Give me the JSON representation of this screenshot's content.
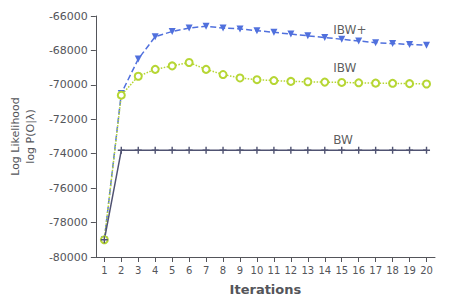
{
  "chart_data": {
    "type": "line",
    "xlabel": "Iterations",
    "ylabel": "Log Likelihood\nlog P(O|λ)",
    "x": [
      1,
      2,
      3,
      4,
      5,
      6,
      7,
      8,
      9,
      10,
      11,
      12,
      13,
      14,
      15,
      16,
      17,
      18,
      19,
      20
    ],
    "series": [
      {
        "name": "IBW+",
        "line_style": "dashed",
        "marker": "triangle_down",
        "values": [
          -79000,
          -70500,
          -68500,
          -67200,
          -66900,
          -66700,
          -66600,
          -66700,
          -66750,
          -66850,
          -66950,
          -67050,
          -67150,
          -67250,
          -67350,
          -67450,
          -67550,
          -67600,
          -67650,
          -67700
        ]
      },
      {
        "name": "IBW",
        "line_style": "dotted",
        "marker": "circle_open",
        "values": [
          -79000,
          -70600,
          -69500,
          -69100,
          -68900,
          -68700,
          -69100,
          -69400,
          -69600,
          -69700,
          -69750,
          -69800,
          -69820,
          -69840,
          -69860,
          -69880,
          -69900,
          -69910,
          -69930,
          -69950
        ]
      },
      {
        "name": "BW",
        "line_style": "solid",
        "marker": "plus",
        "values": [
          -79000,
          -73800,
          -73800,
          -73800,
          -73800,
          -73800,
          -73800,
          -73800,
          -73800,
          -73800,
          -73800,
          -73800,
          -73800,
          -73800,
          -73800,
          -73800,
          -73800,
          -73800,
          -73800,
          -73800
        ]
      }
    ],
    "xlim": [
      0.5,
      20.5
    ],
    "xticks": [
      1,
      2,
      3,
      4,
      5,
      6,
      7,
      8,
      9,
      10,
      11,
      12,
      13,
      14,
      15,
      16,
      17,
      18,
      19,
      20
    ],
    "ylim": [
      -80000,
      -66000
    ],
    "yticks": [
      -80000,
      -78000,
      -76000,
      -74000,
      -72000,
      -70000,
      -68000,
      -66000
    ],
    "grid": false,
    "annotations": [
      {
        "text": "IBW+",
        "x": 14.5,
        "y": -66800
      },
      {
        "text": "IBW",
        "x": 14.5,
        "y": -69000
      },
      {
        "text": "BW",
        "x": 14.5,
        "y": -73200
      }
    ]
  }
}
